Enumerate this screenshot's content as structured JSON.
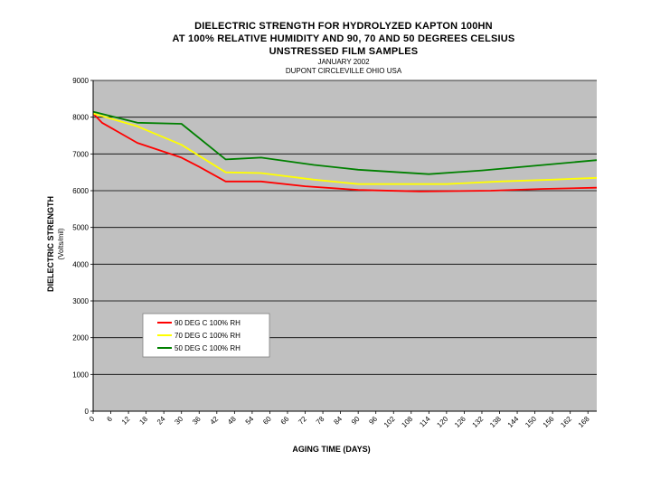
{
  "chart_data": {
    "type": "line",
    "title_lines": [
      "DIELECTRIC STRENGTH FOR HYDROLYZED KAPTON 100HN",
      "AT 100% RELATIVE HUMIDITY AND 90, 70 AND 50 DEGREES CELSIUS",
      "UNSTRESSED FILM SAMPLES"
    ],
    "subtitle_lines": [
      "JANUARY 2002",
      "DUPONT CIRCLEVILLE OHIO USA"
    ],
    "xlabel": "AGING TIME (DAYS)",
    "ylabel": "DIELECTRIC STRENGTH",
    "ylabel_units": "(Volts/mil)",
    "ylim": [
      0,
      9000
    ],
    "yticks": [
      0,
      1000,
      2000,
      3000,
      4000,
      5000,
      6000,
      7000,
      8000,
      9000
    ],
    "xlim": [
      0,
      171
    ],
    "xticks": [
      0,
      6,
      12,
      18,
      24,
      30,
      36,
      42,
      48,
      54,
      60,
      66,
      72,
      78,
      84,
      90,
      96,
      102,
      108,
      114,
      120,
      126,
      132,
      138,
      144,
      150,
      156,
      162,
      168
    ],
    "grid": "horizontal",
    "legend_position": "lower-left",
    "series": [
      {
        "name": "90 DEG C 100% RH",
        "color": "#ff0000",
        "points": [
          [
            0,
            8100
          ],
          [
            3,
            7850
          ],
          [
            15,
            7300
          ],
          [
            30,
            6900
          ],
          [
            36,
            6650
          ],
          [
            45,
            6250
          ],
          [
            57,
            6250
          ],
          [
            72,
            6120
          ],
          [
            90,
            6020
          ],
          [
            111,
            5980
          ],
          [
            135,
            6000
          ],
          [
            153,
            6050
          ],
          [
            171,
            6080
          ]
        ]
      },
      {
        "name": "70 DEG C 100% RH",
        "color": "#ffff00",
        "points": [
          [
            0,
            8100
          ],
          [
            15,
            7750
          ],
          [
            30,
            7250
          ],
          [
            45,
            6500
          ],
          [
            57,
            6480
          ],
          [
            75,
            6300
          ],
          [
            90,
            6180
          ],
          [
            120,
            6180
          ],
          [
            138,
            6250
          ],
          [
            156,
            6300
          ],
          [
            171,
            6350
          ]
        ]
      },
      {
        "name": "50 DEG C 100% RH",
        "color": "#008000",
        "points": [
          [
            0,
            8150
          ],
          [
            15,
            7850
          ],
          [
            30,
            7820
          ],
          [
            45,
            6850
          ],
          [
            57,
            6900
          ],
          [
            75,
            6700
          ],
          [
            90,
            6570
          ],
          [
            114,
            6450
          ],
          [
            132,
            6550
          ],
          [
            153,
            6700
          ],
          [
            171,
            6830
          ]
        ]
      }
    ]
  },
  "colors": {
    "plot_bg": "#c0c0c0",
    "grid": "#000000"
  }
}
